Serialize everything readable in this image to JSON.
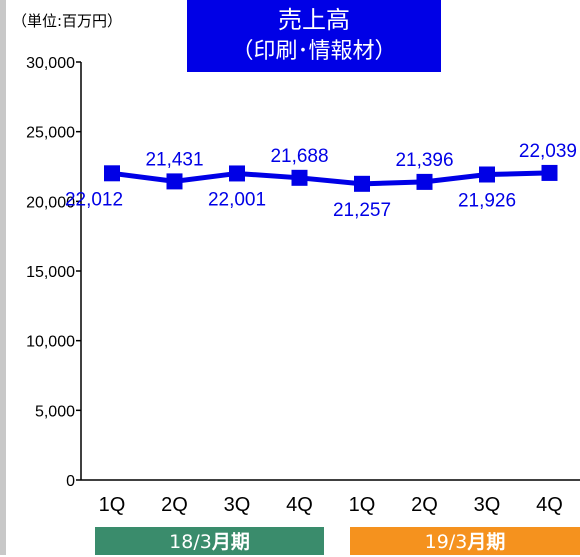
{
  "unit_label": "（単位:百万円）",
  "title": {
    "line1": "売上高",
    "line2": "（印刷･情報材）",
    "bg_color": "#0000e6"
  },
  "fiscal_years": [
    {
      "label_prefix": "18/3",
      "label_suffix": "月期",
      "color": "#3a8c6c"
    },
    {
      "label_prefix": "19/3",
      "label_suffix": "月期",
      "color": "#f5921e"
    }
  ],
  "chart_data": {
    "type": "line",
    "categories": [
      "1Q",
      "2Q",
      "3Q",
      "4Q",
      "1Q",
      "2Q",
      "3Q",
      "4Q"
    ],
    "series": [
      {
        "values": [
          22012,
          21431,
          22001,
          21688,
          21257,
          21396,
          21926,
          22039
        ],
        "data_labels": [
          "22,012",
          "21,431",
          "22,001",
          "21,688",
          "21,257",
          "21,396",
          "21,926",
          "22,039"
        ],
        "color": "#0000e6"
      }
    ],
    "ylim": [
      0,
      30000
    ],
    "yticks": [
      0,
      5000,
      10000,
      15000,
      20000,
      25000,
      30000
    ],
    "ytick_labels": [
      "0",
      "5,000",
      "10,000",
      "15,000",
      "20,000",
      "25,000",
      "30,000"
    ],
    "grid": false
  }
}
